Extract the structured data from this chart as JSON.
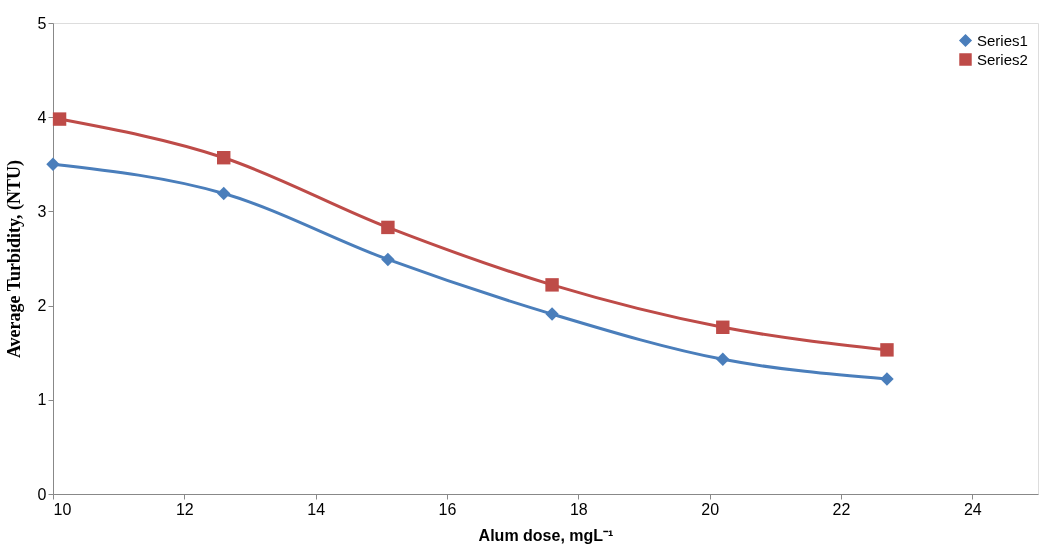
{
  "chart_data": {
    "type": "line",
    "xlabel": "Alum dose, mgL⁻¹",
    "ylabel": "Average Turbidity, (NTU)",
    "xlim": [
      10,
      25
    ],
    "xticks": [
      10,
      12,
      14,
      16,
      18,
      20,
      22,
      24
    ],
    "ylim": [
      0,
      5
    ],
    "yticks": [
      0,
      1,
      2,
      3,
      4,
      5
    ],
    "grid": false,
    "legend": "top right",
    "series": [
      {
        "name": "Series1",
        "color": "#4a7ebb",
        "marker": "diamond",
        "x": [
          10.0,
          12.6,
          15.1,
          17.6,
          20.2,
          22.7
        ],
        "values": [
          3.5,
          3.19,
          2.49,
          1.91,
          1.43,
          1.22
        ]
      },
      {
        "name": "Series2",
        "color": "#be4b48",
        "marker": "square",
        "x": [
          10.1,
          12.6,
          15.1,
          17.6,
          20.2,
          22.7
        ],
        "values": [
          3.98,
          3.57,
          2.83,
          2.22,
          1.77,
          1.53
        ]
      }
    ]
  }
}
